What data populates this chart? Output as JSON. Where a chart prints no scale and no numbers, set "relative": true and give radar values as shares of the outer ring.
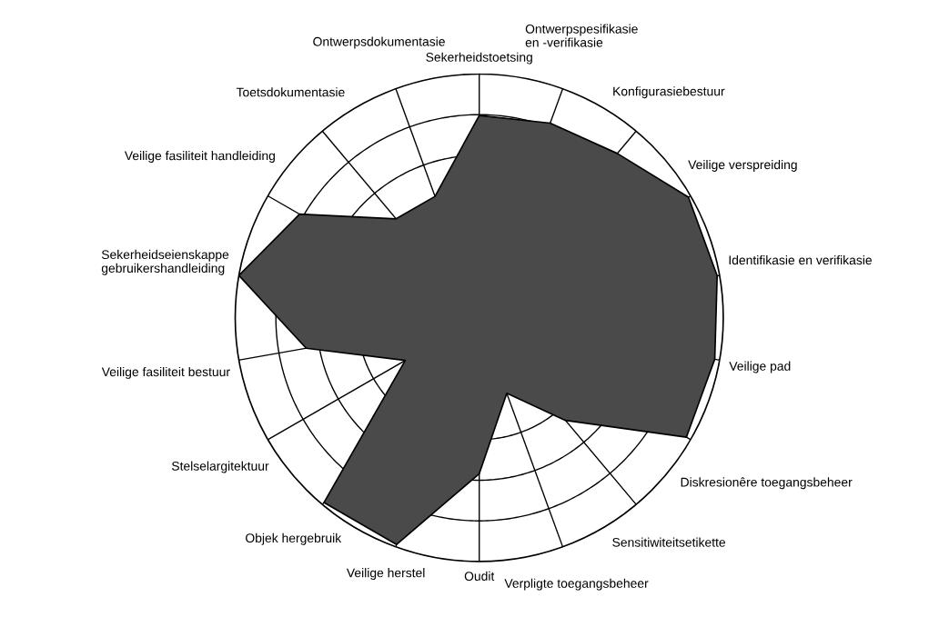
{
  "chart_data": {
    "type": "radar",
    "relative": true,
    "grid": true,
    "categories": [
      "Sekerheidstoetsing",
      "Ontwerpspesifikasie\nen -verifikasie",
      "Konfigurasiebestuur",
      "Veilige verspreiding",
      "Identifikasie en verifikasie",
      "Veilige pad",
      "Diskresionêre toegangsbeheer",
      "Sensitiwiteitsetikette",
      "Verpligte toegangsbeheer",
      "Oudit",
      "Veilige herstel",
      "Objek hergebruik",
      "Stelselargitektuur",
      "Veilige fasiliteit bestuur",
      "Sekerheidseienskappe\ngebruikershandleiding",
      "Veilige fasiliteit handleiding",
      "Toetsdokumentasie",
      "Ontwerpsdokumentasie"
    ],
    "series": [
      {
        "color": "#4a4a4a",
        "values": [
          0.83,
          0.85,
          0.88,
          0.99,
          0.99,
          0.98,
          0.98,
          0.55,
          0.33,
          0.64,
          0.99,
          0.99,
          0.35,
          0.72,
          1.0,
          0.85,
          0.53,
          0.53
        ]
      }
    ]
  }
}
